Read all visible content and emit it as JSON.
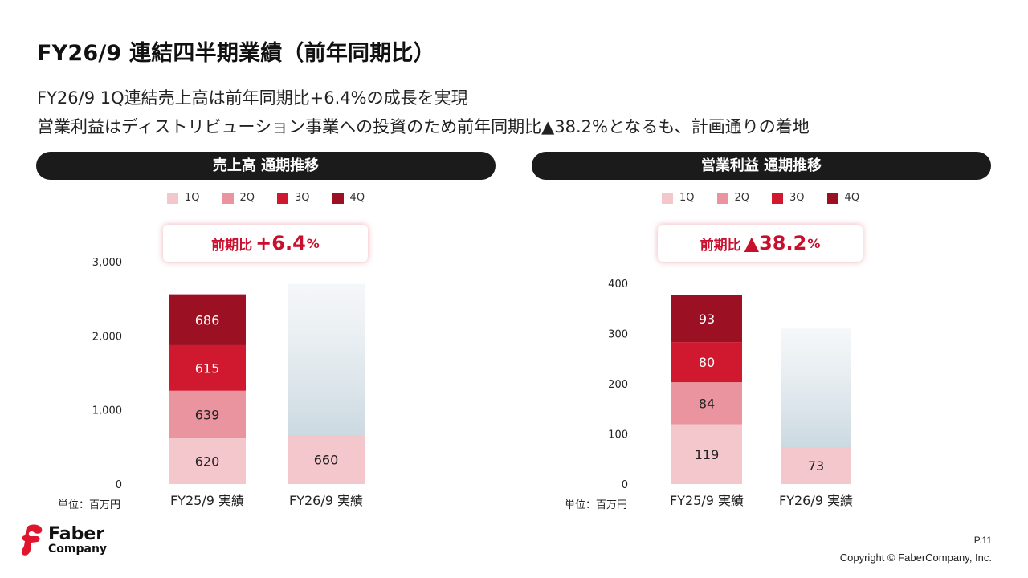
{
  "header": {
    "title": "FY26/9 連結四半期業績（前年同期比）",
    "subtitle_line1": "FY26/9 1Q連結売上高は前年同期比+6.4%の成長を実現",
    "subtitle_line2": "営業利益はディストリビューション事業への投資のため前年同期比▲38.2%となるも、計画通りの着地"
  },
  "colors": {
    "q1": "#f4c7cd",
    "q2": "#e9949f",
    "q3": "#d0182f",
    "q4": "#9c1023",
    "placeholder_top": "#e6edf1",
    "placeholder_bottom": "#b9ccd6",
    "accent": "#c8102e"
  },
  "legend": [
    "1Q",
    "2Q",
    "3Q",
    "4Q"
  ],
  "panels": [
    {
      "header": "売上高 通期推移",
      "yoy_label": "前期比",
      "yoy_value": "+6.4",
      "yoy_unit": "%",
      "unit_label": "単位：百万円"
    },
    {
      "header": "営業利益 通期推移",
      "yoy_label": "前期比",
      "yoy_value": "▲38.2",
      "yoy_unit": "%",
      "unit_label": "単位：百万円"
    }
  ],
  "chart_data": [
    {
      "type": "bar",
      "stacked": true,
      "title": "売上高 通期推移",
      "categories": [
        "FY25/9 実績",
        "FY26/9 実績"
      ],
      "series": [
        {
          "name": "1Q",
          "values": [
            620,
            660
          ]
        },
        {
          "name": "2Q",
          "values": [
            639,
            null
          ]
        },
        {
          "name": "3Q",
          "values": [
            615,
            null
          ]
        },
        {
          "name": "4Q",
          "values": [
            686,
            null
          ]
        }
      ],
      "ylim": [
        0,
        3000
      ],
      "yticks": [
        0,
        1000,
        2000,
        3000
      ],
      "ytick_labels": [
        "0",
        "1,000",
        "2,000",
        "3,000"
      ],
      "placeholder_total": 2700
    },
    {
      "type": "bar",
      "stacked": true,
      "title": "営業利益 通期推移",
      "categories": [
        "FY25/9 実績",
        "FY26/9 実績"
      ],
      "series": [
        {
          "name": "1Q",
          "values": [
            119,
            73
          ]
        },
        {
          "name": "2Q",
          "values": [
            84,
            null
          ]
        },
        {
          "name": "3Q",
          "values": [
            80,
            null
          ]
        },
        {
          "name": "4Q",
          "values": [
            93,
            null
          ]
        }
      ],
      "ylim": [
        0,
        400
      ],
      "yticks": [
        0,
        100,
        200,
        300,
        400
      ],
      "ytick_labels": [
        "0",
        "100",
        "200",
        "300",
        "400"
      ],
      "placeholder_total": 310
    }
  ],
  "logo": {
    "line1": "Faber",
    "line2": "Company"
  },
  "footer": {
    "page": "P.11",
    "copyright": "Copyright © FaberCompany, Inc."
  }
}
